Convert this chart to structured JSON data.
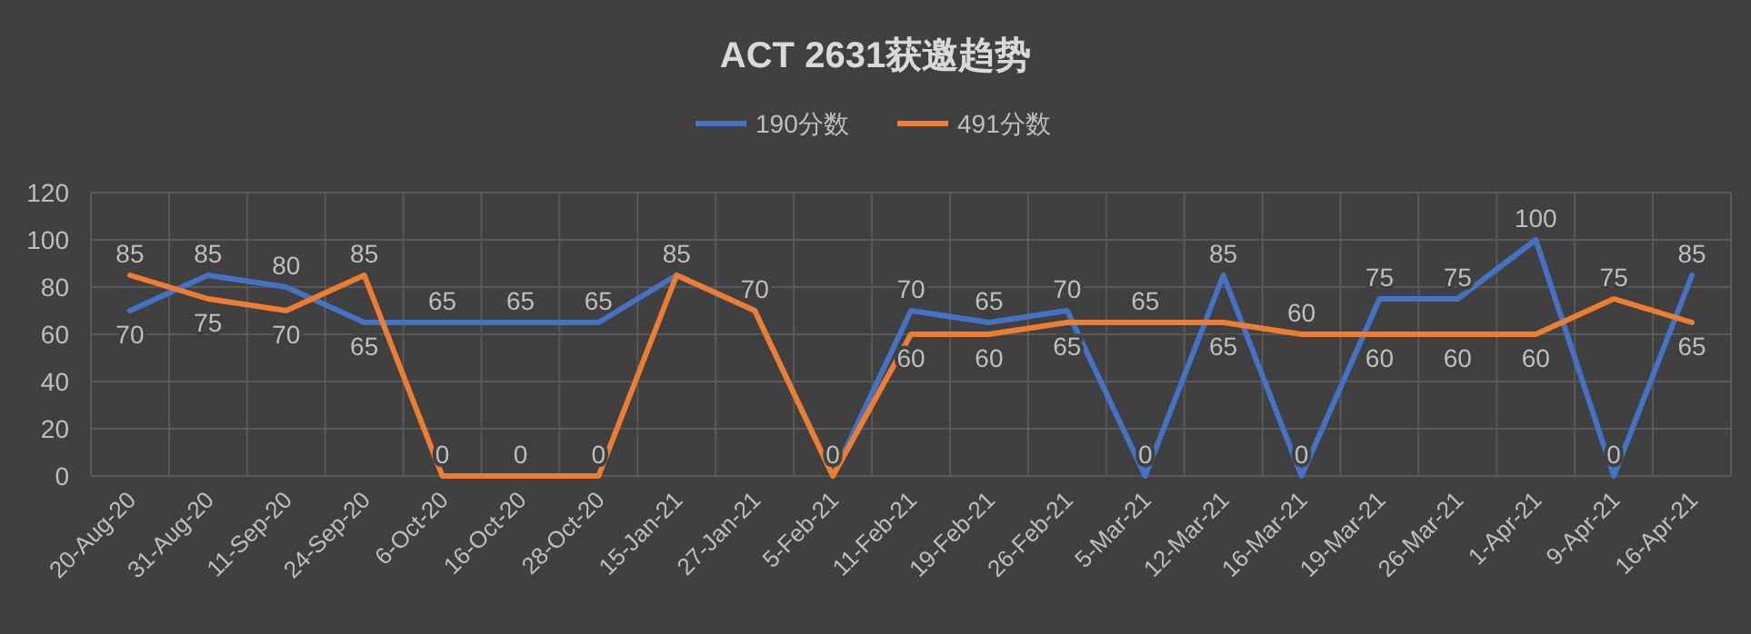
{
  "chart_data": {
    "type": "line",
    "title": "ACT 2631获邀趋势",
    "categories": [
      "20-Aug-20",
      "31-Aug-20",
      "11-Sep-20",
      "24-Sep-20",
      "6-Oct-20",
      "16-Oct-20",
      "28-Oct-20",
      "15-Jan-21",
      "27-Jan-21",
      "5-Feb-21",
      "11-Feb-21",
      "19-Feb-21",
      "26-Feb-21",
      "5-Mar-21",
      "12-Mar-21",
      "16-Mar-21",
      "19-Mar-21",
      "26-Mar-21",
      "1-Apr-21",
      "9-Apr-21",
      "16-Apr-21"
    ],
    "series": [
      {
        "name": "190分数",
        "color": "#4472c4",
        "values": [
          70,
          85,
          80,
          65,
          65,
          65,
          65,
          85,
          70,
          0,
          70,
          65,
          70,
          0,
          85,
          0,
          75,
          75,
          100,
          0,
          85
        ],
        "value_labels": [
          "70",
          "85",
          "80",
          "65",
          "65",
          "65",
          "65",
          "85",
          "70",
          "0",
          "70",
          "65",
          "70",
          "0",
          "85",
          "0",
          "75",
          "75",
          "100",
          "0",
          "85"
        ]
      },
      {
        "name": "491分数",
        "color": "#ed7d31",
        "values": [
          85,
          75,
          70,
          85,
          0,
          0,
          0,
          85,
          70,
          0,
          60,
          60,
          65,
          65,
          65,
          60,
          60,
          60,
          60,
          75,
          65
        ],
        "value_labels": [
          "85",
          "75",
          "70",
          "85",
          "0",
          "0",
          "0",
          null,
          null,
          null,
          "60",
          "60",
          "65",
          "65",
          "65",
          "60",
          "60",
          "60",
          "60",
          "75",
          "65"
        ]
      }
    ],
    "ylim": [
      0,
      120
    ],
    "yticks": [
      0,
      20,
      40,
      60,
      80,
      100,
      120
    ],
    "grid": true,
    "legend": "top"
  }
}
